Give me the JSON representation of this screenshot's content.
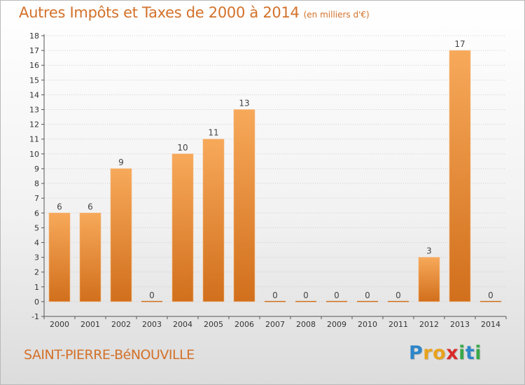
{
  "title": "Autres Impôts et Taxes de 2000 à 2014",
  "subtitle": "(en milliers d'€)",
  "place": "SAINT-PIERRE-BéNOUVILLE",
  "logo": {
    "letters": [
      "P",
      "r",
      "o",
      "x",
      "i",
      "t",
      "i"
    ],
    "colors": [
      "#2e86c8",
      "#e8a21c",
      "#e8a21c",
      "#d92a2a",
      "#3aa84a",
      "#2e86c8",
      "#3aa84a"
    ]
  },
  "colors": {
    "accent": "#d3712a",
    "bar_top": "#f7a95a",
    "bar_bottom": "#d16f1c",
    "axis": "#555555",
    "grid": "#cfcfcf"
  },
  "chart_data": {
    "type": "bar",
    "categories": [
      "2000",
      "2001",
      "2002",
      "2003",
      "2004",
      "2005",
      "2006",
      "2007",
      "2008",
      "2009",
      "2010",
      "2011",
      "2012",
      "2013",
      "2014"
    ],
    "values": [
      6,
      6,
      9,
      0,
      10,
      11,
      13,
      0,
      0,
      0,
      0,
      0,
      3,
      17,
      0
    ],
    "data_labels": [
      "6",
      "6",
      "9",
      "0",
      "10",
      "11",
      "13",
      "0",
      "0",
      "0",
      "0",
      "0",
      "3",
      "17",
      "0"
    ],
    "yticks": [
      "-1",
      "0",
      "1",
      "2",
      "3",
      "4",
      "5",
      "6",
      "7",
      "8",
      "9",
      "10",
      "11",
      "12",
      "13",
      "14",
      "15",
      "16",
      "17",
      "18"
    ],
    "ylim": [
      -1,
      18
    ],
    "grid": true,
    "legend": "none"
  }
}
